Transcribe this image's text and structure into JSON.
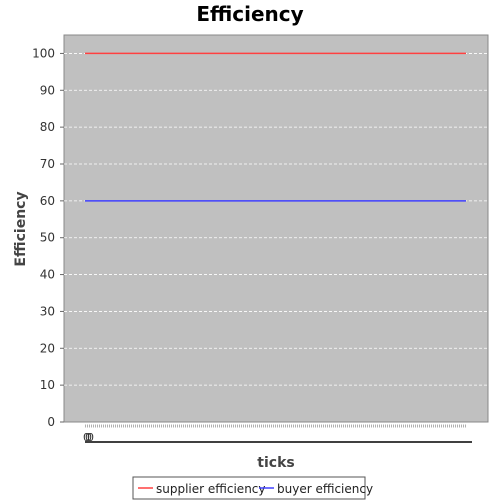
{
  "chart_data": {
    "type": "line",
    "title": "Efficiency",
    "xlabel": "ticks",
    "ylabel": "Efficiency",
    "ylim": [
      0,
      105
    ],
    "yticks": [
      0,
      10,
      20,
      30,
      40,
      50,
      60,
      70,
      80,
      90,
      100
    ],
    "x_tick_labels": [
      "0",
      "0",
      "0"
    ],
    "grid": true,
    "legend_position": "bottom",
    "colors": {
      "plot_background": "#c0c0c0",
      "grid": "#ffffff",
      "supplier": "#ff4040",
      "buyer": "#4040ff"
    },
    "x": [
      0,
      100
    ],
    "series": [
      {
        "name": "supplier efficiency",
        "values": [
          100,
          100
        ],
        "color": "#ff4040"
      },
      {
        "name": "buyer efficiency",
        "values": [
          60,
          60
        ],
        "color": "#4040ff"
      }
    ]
  }
}
